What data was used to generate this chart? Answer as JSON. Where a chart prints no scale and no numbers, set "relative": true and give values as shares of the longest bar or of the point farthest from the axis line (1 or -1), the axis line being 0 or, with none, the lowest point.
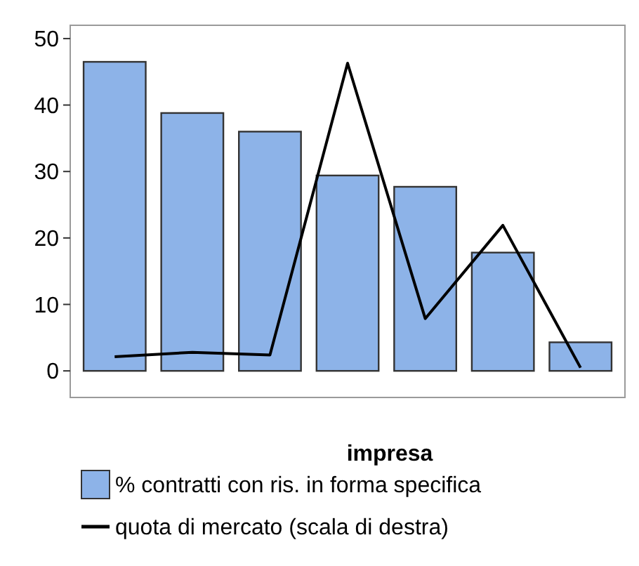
{
  "chart_data": [
    {
      "type": "bar",
      "xlabel": "impresa",
      "categories": [
        null,
        null,
        null,
        null,
        null,
        null,
        null
      ],
      "series": [
        {
          "name": "% contratti con ris. in forma specifica",
          "color": "#8db3e8",
          "values": [
            46.5,
            38.8,
            36,
            29.4,
            27.7,
            17.8,
            4.3
          ]
        }
      ],
      "ylim": [
        -4,
        52
      ],
      "yticks": [
        0,
        10,
        20,
        30,
        40,
        50
      ],
      "legend": "bottom"
    },
    {
      "type": "line",
      "relative": true,
      "categories": [
        null,
        null,
        null,
        null,
        null,
        null,
        null
      ],
      "series": [
        {
          "name": "quota di mercato (scala di destra)",
          "color": "#000000",
          "values": [
            0.122,
            0.135,
            0.127,
            1,
            0.236,
            0.515,
            0.089
          ]
        }
      ],
      "legend": "bottom"
    }
  ]
}
